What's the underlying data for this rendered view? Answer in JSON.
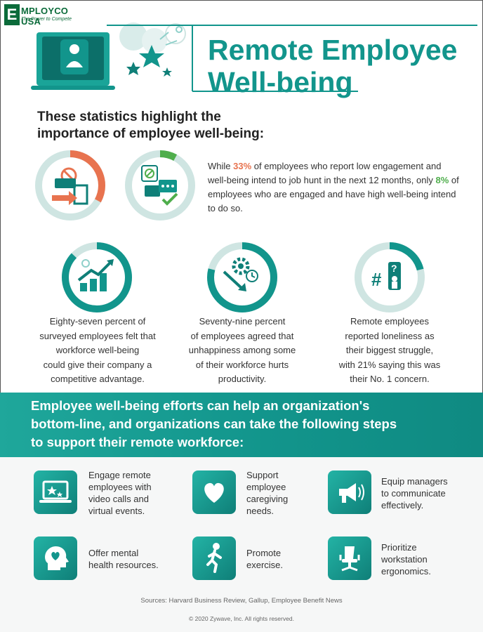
{
  "logo": {
    "letter": "E",
    "name": "MPLOYCO USA",
    "tagline": "The Power to Compete"
  },
  "title": {
    "line1": "Remote Employee",
    "line2": "Well-being"
  },
  "intro": {
    "line1": "These statistics highlight the",
    "line2": "importance of employee well-being:"
  },
  "stat": {
    "p1": "While ",
    "v1": "33%",
    "p2": " of employees who report low engagement and well-being intend to job hunt in the next 12 months, only ",
    "v2": "8%",
    "p3": " of employees who are engaged and have high well-being intend to do so."
  },
  "captions": [
    {
      "lines": [
        "Eighty-seven percent of",
        "surveyed employees felt that",
        "workforce well-being",
        "could give their company a",
        "competitive advantage."
      ]
    },
    {
      "lines": [
        "Seventy-nine percent",
        "of employees agreed that",
        "unhappiness among some",
        "of their workforce hurts",
        "productivity."
      ]
    },
    {
      "lines": [
        "Remote employees",
        "reported loneliness as",
        "their biggest struggle,",
        "with 21% saying this was",
        "their No. 1 concern."
      ]
    }
  ],
  "rings": [
    {
      "name": "low-engagement",
      "fraction": 0.33,
      "color": "#e8734f"
    },
    {
      "name": "high-wellbeing",
      "fraction": 0.08,
      "color": "#4fae4c"
    },
    {
      "name": "competitive-advantage",
      "fraction": 0.87,
      "color": "#12958c"
    },
    {
      "name": "unhappiness",
      "fraction": 0.79,
      "color": "#12958c"
    },
    {
      "name": "loneliness",
      "fraction": 0.21,
      "color": "#12958c"
    }
  ],
  "band": {
    "lines": [
      "Employee well-being efforts can help an organization's",
      "bottom-line, and organizations can take the following steps",
      "to support their remote workforce:"
    ]
  },
  "tips": [
    {
      "icon": "laptop-video-icon",
      "lines": [
        "Engage remote",
        "employees with",
        "video calls and",
        "virtual events."
      ]
    },
    {
      "icon": "heart-icon",
      "lines": [
        "Support",
        "employee",
        "caregiving",
        "needs."
      ]
    },
    {
      "icon": "megaphone-icon",
      "lines": [
        "Equip managers",
        "to communicate",
        "effectively."
      ]
    },
    {
      "icon": "head-heart-icon",
      "lines": [
        "Offer mental",
        "health resources."
      ]
    },
    {
      "icon": "runner-icon",
      "lines": [
        "Promote",
        "exercise."
      ]
    },
    {
      "icon": "office-chair-icon",
      "lines": [
        "Prioritize",
        "workstation",
        "ergonomics."
      ]
    }
  ],
  "sources": "Sources: Harvard Business Review, Gallup, Employee Benefit News",
  "copyright": "© 2020 Zywave, Inc. All rights reserved.",
  "colors": {
    "teal": "#12958c",
    "orange": "#e8734f",
    "green": "#4fae4c",
    "ring_track": "#cfe5e2",
    "brand": "#0b6b3a"
  }
}
